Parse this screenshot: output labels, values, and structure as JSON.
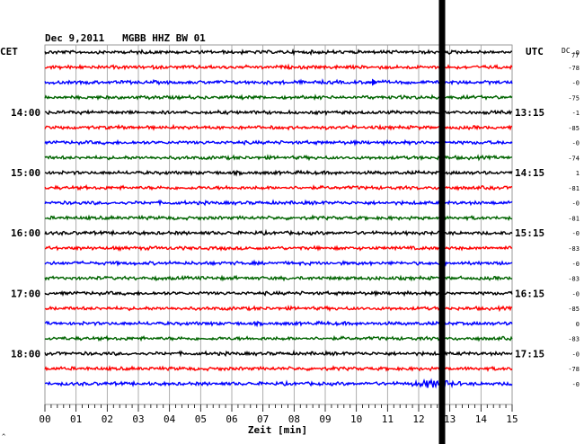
{
  "chart_data": {
    "type": "line",
    "title": "Dec 9,2011   MGBB HHZ BW 01",
    "left_timezone": "CET",
    "right_timezone": "UTC",
    "dc_header": "DC",
    "dc_first_value": "77",
    "xlabel": "Zeit [min]",
    "xlim": [
      0,
      15
    ],
    "x_ticks": [
      "00",
      "01",
      "02",
      "03",
      "04",
      "05",
      "06",
      "07",
      "08",
      "09",
      "10",
      "11",
      "12",
      "13",
      "14",
      "15"
    ],
    "grid": true,
    "trace_minutes_per_line": 15,
    "line_color_cycle": [
      "#000000",
      "#ff0000",
      "#0000ff",
      "#006400"
    ],
    "left_hour_labels": [
      {
        "line": 4,
        "label": "14:00"
      },
      {
        "line": 8,
        "label": "15:00"
      },
      {
        "line": 12,
        "label": "16:00"
      },
      {
        "line": 16,
        "label": "17:00"
      },
      {
        "line": 20,
        "label": "18:00"
      }
    ],
    "right_hour_labels": [
      {
        "line": 4,
        "label": "13:15"
      },
      {
        "line": 8,
        "label": "14:15"
      },
      {
        "line": 12,
        "label": "15:15"
      },
      {
        "line": 16,
        "label": "16:15"
      },
      {
        "line": 20,
        "label": "17:15"
      }
    ],
    "dc_offsets": [
      "-0",
      "-78",
      "-0",
      "-75",
      "-1",
      "-85",
      "-0",
      "-74",
      "1",
      "-81",
      "-0",
      "-81",
      "-0",
      "-83",
      "-0",
      "-83",
      "-0",
      "-85",
      "0",
      "-83",
      "-0",
      "-78",
      "-0"
    ],
    "current_time_marker_minute": 12.75,
    "arrow_marker": {
      "line": 2,
      "minute": 10.5
    }
  }
}
